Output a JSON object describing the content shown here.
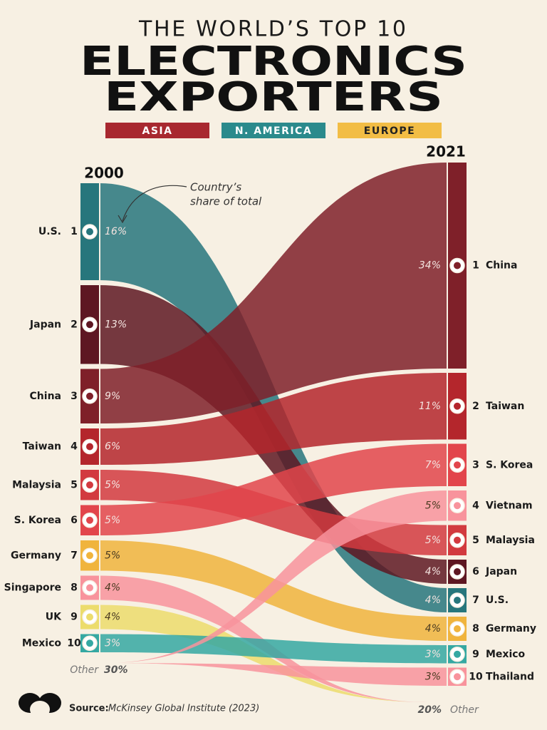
{
  "chart_data": {
    "type": "sankey",
    "title_lines": [
      "THE WORLD’S TOP 10",
      "ELECTRONICS",
      "EXPORTERS"
    ],
    "legend": [
      {
        "name": "ASIA",
        "color": "#a8282f"
      },
      {
        "name": "N. AMERICA",
        "color": "#2b8a8c"
      },
      {
        "name": "EUROPE",
        "color": "#f2bd45"
      }
    ],
    "annotation_lines": [
      "Country’s",
      "share of total"
    ],
    "columns": [
      {
        "year": "2000",
        "names": [
          "U.S.",
          "Japan",
          "China",
          "Taiwan",
          "Malaysia",
          "S. Korea",
          "Germany",
          "Singapore",
          "UK",
          "Mexico"
        ],
        "ranks": [
          1,
          2,
          3,
          4,
          5,
          6,
          7,
          8,
          9,
          10
        ],
        "values": [
          16,
          13,
          9,
          6,
          5,
          5,
          5,
          4,
          4,
          3
        ],
        "value_labels": [
          "16%",
          "13%",
          "9%",
          "6%",
          "5%",
          "5%",
          "5%",
          "4%",
          "4%",
          "3%"
        ],
        "colors": [
          "#27767c",
          "#5e1722",
          "#7f2029",
          "#b4262c",
          "#d23a3f",
          "#e2454b",
          "#f0b43d",
          "#f8939c",
          "#ecdc6c",
          "#35a8a2"
        ],
        "other": {
          "name": "Other",
          "value": 30,
          "value_label": "30%"
        }
      },
      {
        "year": "2021",
        "names": [
          "China",
          "Taiwan",
          "S. Korea",
          "Vietnam",
          "Malaysia",
          "Japan",
          "U.S.",
          "Germany",
          "Mexico",
          "Thailand"
        ],
        "ranks": [
          1,
          2,
          3,
          4,
          5,
          6,
          7,
          8,
          9,
          10
        ],
        "values": [
          34,
          11,
          7,
          5,
          5,
          4,
          4,
          4,
          3,
          3
        ],
        "value_labels": [
          "34%",
          "11%",
          "7%",
          "5%",
          "5%",
          "4%",
          "4%",
          "4%",
          "3%",
          "3%"
        ],
        "colors": [
          "#7f2029",
          "#b4262c",
          "#e2454b",
          "#f8939c",
          "#d23a3f",
          "#5e1722",
          "#27767c",
          "#f0b43d",
          "#35a8a2",
          "#f8939c"
        ],
        "other": {
          "name": "Other",
          "value": 20,
          "value_label": "20%"
        }
      }
    ],
    "source_label": "Source:",
    "source": "McKinsey Global Institute (2023)"
  }
}
